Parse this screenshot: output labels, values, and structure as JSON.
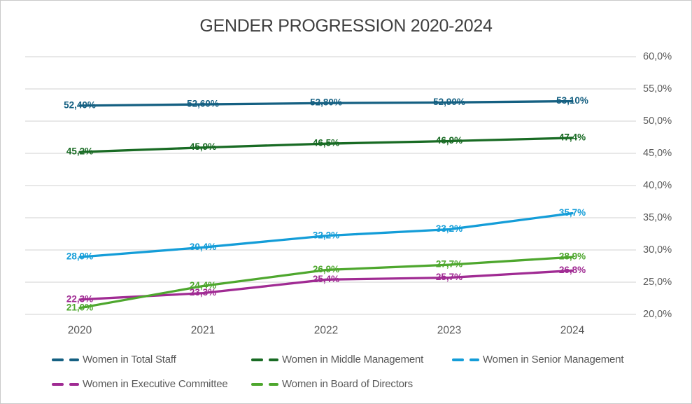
{
  "title": "GENDER PROGRESSION 2020-2024",
  "chart_data": {
    "type": "line",
    "title": "GENDER PROGRESSION 2020-2024",
    "x": [
      "2020",
      "2021",
      "2022",
      "2023",
      "2024"
    ],
    "series": [
      {
        "name": "Women in Total Staff",
        "color": "#156082",
        "values": [
          52.4,
          52.6,
          52.8,
          52.9,
          53.1
        ],
        "labels": [
          "52,40%",
          "52,60%",
          "52,80%",
          "52,90%",
          "53,10%"
        ]
      },
      {
        "name": "Women in Middle Management",
        "color": "#196B24",
        "values": [
          45.2,
          45.9,
          46.5,
          46.9,
          47.4
        ],
        "labels": [
          "45,2%",
          "45,9%",
          "46,5%",
          "46,9%",
          "47,4%"
        ]
      },
      {
        "name": "Women in Senior Management",
        "color": "#149DD8",
        "values": [
          28.9,
          30.4,
          32.2,
          33.2,
          35.7
        ],
        "labels": [
          "28,9%",
          "30,4%",
          "32,2%",
          "33,2%",
          "35,7%"
        ]
      },
      {
        "name": "Women in Executive Committee",
        "color": "#A02B93",
        "values": [
          22.3,
          23.3,
          25.4,
          25.7,
          26.8
        ],
        "labels": [
          "22,3%",
          "23,3%",
          "25,4%",
          "25,7%",
          "26,8%"
        ]
      },
      {
        "name": "Women in Board of Directors",
        "color": "#4EA72E",
        "values": [
          21.0,
          24.4,
          26.9,
          27.7,
          28.9
        ],
        "labels": [
          "21,0%",
          "24,4%",
          "26,9%",
          "27,7%",
          "28,9%"
        ]
      }
    ],
    "y_axis": {
      "min": 20,
      "max": 60,
      "step": 5,
      "side": "right",
      "tick_labels": [
        "20,0%",
        "25,0%",
        "30,0%",
        "35,0%",
        "40,0%",
        "45,0%",
        "50,0%",
        "55,0%",
        "60,0%"
      ]
    },
    "grid": true,
    "gridline_color": "#D9D9D9",
    "axis_text_color": "#595959",
    "legend_position": "bottom"
  }
}
